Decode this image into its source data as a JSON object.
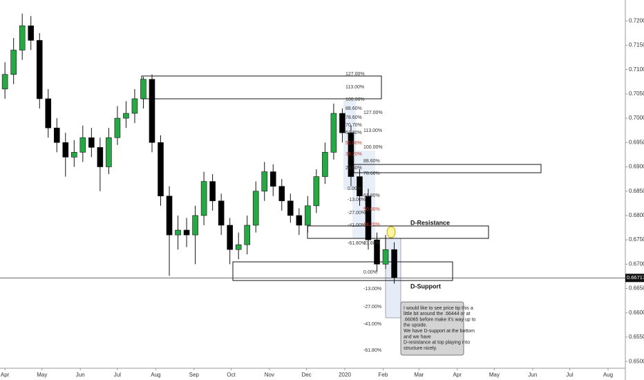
{
  "chart_data": {
    "type": "candlestick",
    "x": [
      0,
      7,
      14,
      21,
      28,
      35,
      42,
      49,
      56,
      63,
      70,
      77,
      84,
      91,
      98,
      105,
      112,
      119,
      126,
      133,
      140,
      147,
      154,
      161,
      168,
      175,
      182,
      189,
      196,
      203,
      210,
      217,
      224,
      231,
      238,
      245,
      252,
      259,
      266,
      273,
      280,
      287,
      294,
      301,
      308,
      315
    ],
    "open": [
      0.706,
      0.709,
      0.714,
      0.719,
      0.716,
      0.704,
      0.698,
      0.695,
      0.692,
      0.693,
      0.696,
      0.694,
      0.69,
      0.696,
      0.7,
      0.701,
      0.704,
      0.708,
      0.695,
      0.684,
      0.676,
      0.677,
      0.676,
      0.68,
      0.687,
      0.683,
      0.678,
      0.673,
      0.674,
      0.678,
      0.685,
      0.689,
      0.686,
      0.683,
      0.68,
      0.678,
      0.682,
      0.688,
      0.693,
      0.701,
      0.697,
      0.688,
      0.684,
      0.675,
      0.67,
      0.673
    ],
    "high": [
      0.7115,
      0.7165,
      0.7215,
      0.721,
      0.7175,
      0.706,
      0.7,
      0.697,
      0.6955,
      0.6985,
      0.698,
      0.696,
      0.698,
      0.7025,
      0.7035,
      0.706,
      0.7085,
      0.709,
      0.6965,
      0.686,
      0.68,
      0.6795,
      0.682,
      0.689,
      0.6885,
      0.6845,
      0.6795,
      0.6765,
      0.68,
      0.687,
      0.691,
      0.6905,
      0.6875,
      0.6845,
      0.6815,
      0.684,
      0.6895,
      0.695,
      0.703,
      0.702,
      0.6985,
      0.6895,
      0.6855,
      0.6765,
      0.676,
      0.6745
    ],
    "low": [
      0.704,
      0.707,
      0.712,
      0.714,
      0.702,
      0.696,
      0.693,
      0.688,
      0.69,
      0.691,
      0.692,
      0.685,
      0.6885,
      0.6945,
      0.698,
      0.699,
      0.702,
      0.693,
      0.682,
      0.6676,
      0.673,
      0.6735,
      0.67,
      0.678,
      0.681,
      0.676,
      0.67,
      0.671,
      0.672,
      0.6765,
      0.683,
      0.684,
      0.681,
      0.6785,
      0.676,
      0.6765,
      0.6805,
      0.6865,
      0.6915,
      0.695,
      0.686,
      0.682,
      0.673,
      0.6685,
      0.669,
      0.666
    ],
    "close": [
      0.709,
      0.714,
      0.719,
      0.716,
      0.704,
      0.698,
      0.695,
      0.692,
      0.693,
      0.696,
      0.694,
      0.69,
      0.696,
      0.7,
      0.701,
      0.704,
      0.708,
      0.695,
      0.684,
      0.676,
      0.677,
      0.676,
      0.68,
      0.687,
      0.683,
      0.678,
      0.673,
      0.674,
      0.678,
      0.685,
      0.689,
      0.686,
      0.683,
      0.68,
      0.678,
      0.682,
      0.688,
      0.693,
      0.701,
      0.697,
      0.688,
      0.684,
      0.675,
      0.67,
      0.673,
      0.6672
    ],
    "up_color": "#27a844",
    "down_color": "#000000",
    "xlim": [
      -4,
      502
    ],
    "xticks": [
      {
        "value": 0,
        "label": "Apr"
      },
      {
        "value": 30,
        "label": "May"
      },
      {
        "value": 61,
        "label": "Jun"
      },
      {
        "value": 91,
        "label": "Jul"
      },
      {
        "value": 122,
        "label": "Aug"
      },
      {
        "value": 153,
        "label": "Sep"
      },
      {
        "value": 183,
        "label": "Oct"
      },
      {
        "value": 214,
        "label": "Nov"
      },
      {
        "value": 244,
        "label": "Dec"
      },
      {
        "value": 275,
        "label": "2020"
      },
      {
        "value": 306,
        "label": "Feb"
      },
      {
        "value": 335,
        "label": "Mar"
      },
      {
        "value": 366,
        "label": "Apr"
      },
      {
        "value": 396,
        "label": "May"
      },
      {
        "value": 427,
        "label": "Jun"
      },
      {
        "value": 457,
        "label": "Jul"
      },
      {
        "value": 488,
        "label": "Aug"
      }
    ],
    "ylim": [
      0.6486,
      0.7243
    ],
    "yticks": [
      {
        "value": 0.65,
        "label": "0.65000"
      },
      {
        "value": 0.655,
        "label": "0.65500"
      },
      {
        "value": 0.66,
        "label": "0.66000"
      },
      {
        "value": 0.665,
        "label": "0.66500"
      },
      {
        "value": 0.67,
        "label": "0.67000"
      },
      {
        "value": 0.675,
        "label": "0.67500"
      },
      {
        "value": 0.68,
        "label": "0.68000"
      },
      {
        "value": 0.685,
        "label": "0.68500"
      },
      {
        "value": 0.69,
        "label": "0.69000"
      },
      {
        "value": 0.695,
        "label": "0.69500"
      },
      {
        "value": 0.7,
        "label": "0.70000"
      },
      {
        "value": 0.705,
        "label": "0.70500"
      },
      {
        "value": 0.71,
        "label": "0.71000"
      },
      {
        "value": 0.715,
        "label": "0.71500"
      },
      {
        "value": 0.72,
        "label": "0.72000"
      }
    ],
    "last_price": 0.66717,
    "annotations": {
      "fib_a": [
        "127.00%",
        "113.00%",
        "100.00%",
        "88.60%",
        "78.60%",
        "70.70%",
        "61.80%",
        "50.00%",
        "38.20%",
        "23.60%",
        "0.00%",
        "-13.00%",
        "-27.00%",
        "-41.00%",
        "-61.80%"
      ],
      "fib_b": [
        "127.00%",
        "113.00%",
        "100.00%",
        "88.60%",
        "78.60%",
        "61.80%",
        "50.00%",
        "38.20%",
        "23.60%",
        "0.00%",
        "-13.00%",
        "-27.00%",
        "-41.00%",
        "-61.80%"
      ],
      "d_resistance": "D-Resistance",
      "d_support": "D-Support",
      "note": [
        "I would like to see price tip this a",
        "little bit around the .66444 or at",
        ".66065 before make it's way up to",
        "the upside.",
        "We have D-support at the bottom",
        "and we have",
        "D-resistance at top playing into",
        "structure nicely."
      ]
    }
  }
}
